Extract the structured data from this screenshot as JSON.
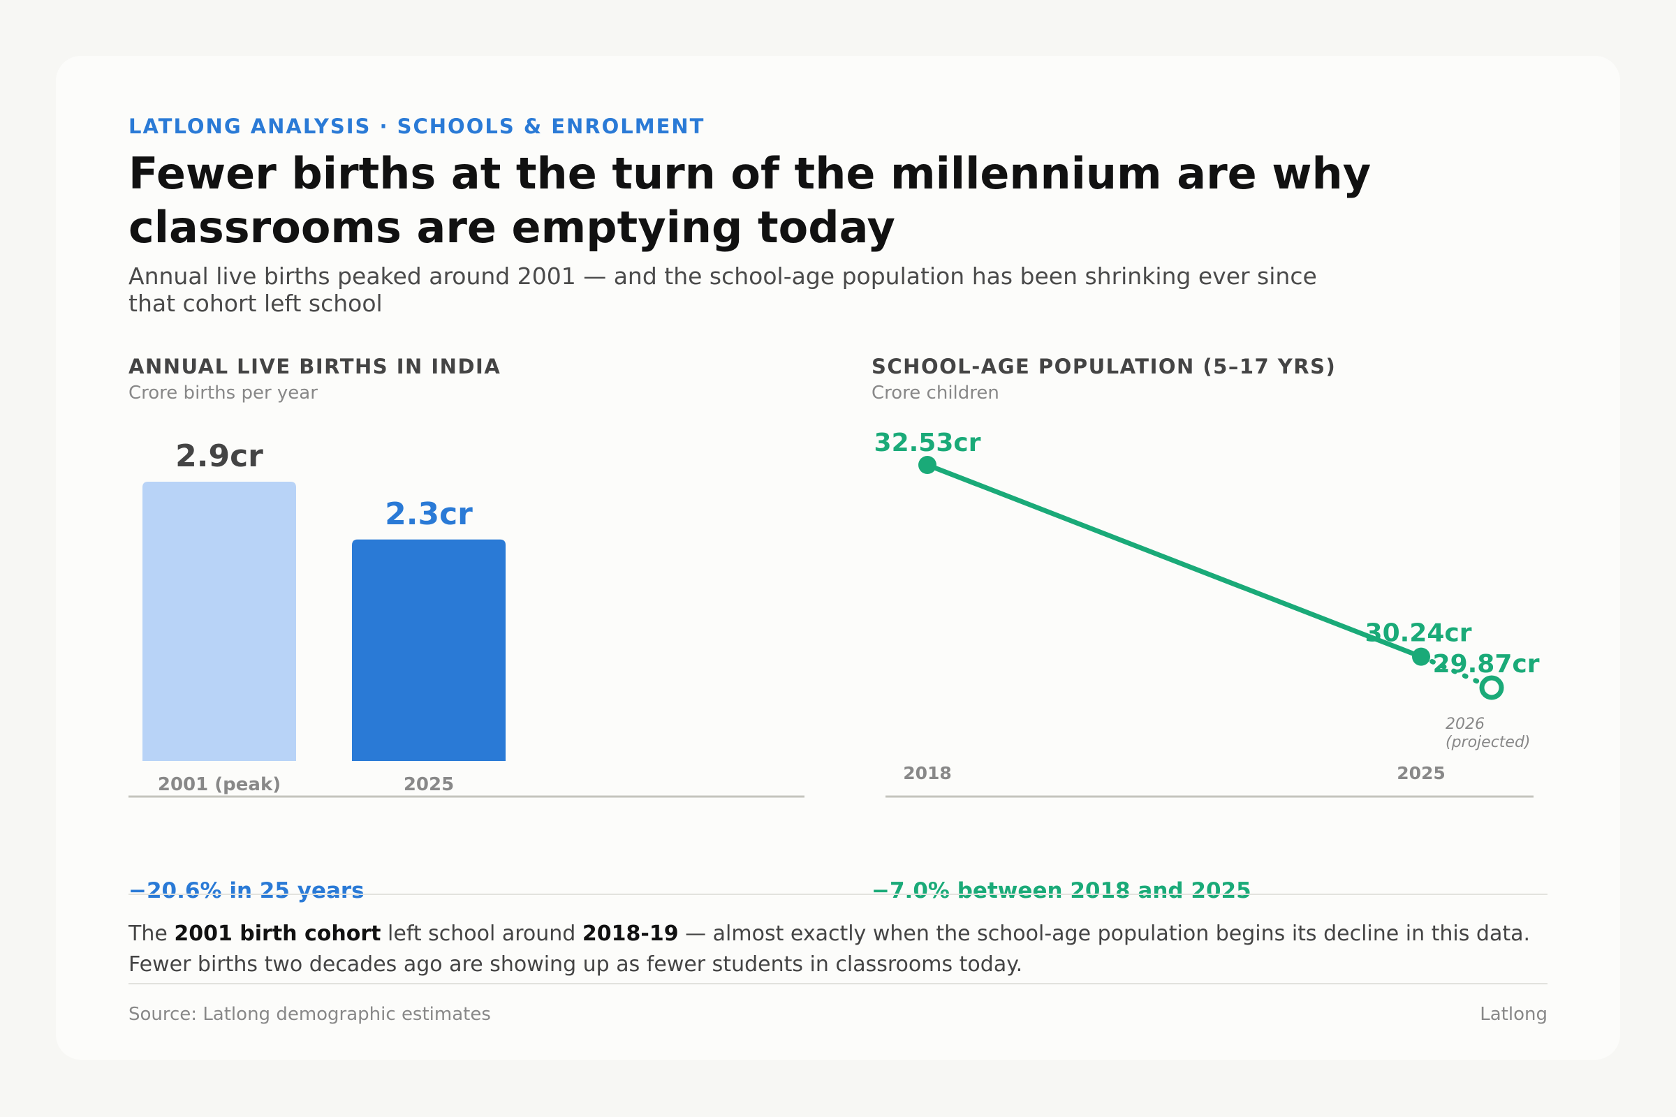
{
  "header": {
    "kicker": "LATLONG ANALYSIS · SCHOOLS & ENROLMENT",
    "title": "Fewer births at the turn of the millennium are why classrooms are emptying today",
    "subtitle": "Annual live births peaked around 2001 — and the school-age population has been shrinking ever since that cohort left school"
  },
  "colors": {
    "accent_blue": "#2a7ad6",
    "light_blue": "#b8d3f7",
    "green": "#1aaa78",
    "axis": "#c4c4bd"
  },
  "chart_data": [
    {
      "type": "bar",
      "title": "ANNUAL LIVE BIRTHS IN INDIA",
      "subtitle": "Crore births per year",
      "categories": [
        "2001 (peak)",
        "2025"
      ],
      "values": [
        2.9,
        2.3
      ],
      "value_labels": [
        "2.9cr",
        "2.3cr"
      ],
      "ylim": [
        0,
        2.9
      ],
      "footnote": "−20.6% in 25 years"
    },
    {
      "type": "line",
      "title": "SCHOOL-AGE POPULATION (5–17 YRS)",
      "subtitle": "Crore children",
      "x": [
        2018,
        2025,
        2026
      ],
      "x_labels": [
        "2018",
        "2025",
        "2026",
        "(projected)"
      ],
      "values": [
        32.53,
        30.24,
        29.87
      ],
      "value_labels": [
        "32.53cr",
        "30.24cr",
        "29.87cr"
      ],
      "projected_from_index": 1,
      "footnote": "−7.0% between 2018 and 2025"
    }
  ],
  "note": {
    "pre": "The ",
    "b1": "2001 birth cohort",
    "mid": " left school around ",
    "b2": "2018-19",
    "post": " — almost exactly when the school-age population begins its decline in this data. Fewer births two decades ago are showing up as fewer students in classrooms today."
  },
  "footer": {
    "source": "Source: Latlong demographic estimates",
    "brand": "Latlong"
  }
}
